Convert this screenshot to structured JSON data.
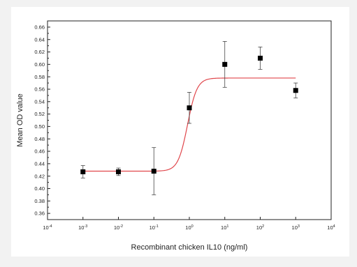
{
  "chart_data": {
    "type": "scatter",
    "title": "",
    "xlabel": "Recombinant chicken IL10 (ng/ml)",
    "ylabel": "Mean OD value",
    "x_scale": "log",
    "xlim": [
      0.0001,
      10000
    ],
    "ylim": [
      0.35,
      0.67
    ],
    "x_ticks": [
      {
        "value": 0.0001,
        "base": "10",
        "exp": "-4"
      },
      {
        "value": 0.001,
        "base": "10",
        "exp": "-3"
      },
      {
        "value": 0.01,
        "base": "10",
        "exp": "-2"
      },
      {
        "value": 0.1,
        "base": "10",
        "exp": "-1"
      },
      {
        "value": 1,
        "base": "10",
        "exp": "0"
      },
      {
        "value": 10,
        "base": "10",
        "exp": "1"
      },
      {
        "value": 100,
        "base": "10",
        "exp": "2"
      },
      {
        "value": 1000,
        "base": "10",
        "exp": "3"
      },
      {
        "value": 10000,
        "base": "10",
        "exp": "4"
      }
    ],
    "y_ticks": [
      "0.36",
      "0.38",
      "0.40",
      "0.42",
      "0.44",
      "0.46",
      "0.48",
      "0.50",
      "0.52",
      "0.54",
      "0.56",
      "0.58",
      "0.60",
      "0.62",
      "0.64",
      "0.66"
    ],
    "grid": false,
    "series": [
      {
        "marker": "square",
        "color": "#000000",
        "points": [
          {
            "x": 0.001,
            "y": 0.427,
            "err": 0.01
          },
          {
            "x": 0.01,
            "y": 0.427,
            "err": 0.006
          },
          {
            "x": 0.1,
            "y": 0.428,
            "err": 0.038
          },
          {
            "x": 1,
            "y": 0.53,
            "err": 0.025
          },
          {
            "x": 10,
            "y": 0.6,
            "err": 0.037
          },
          {
            "x": 100,
            "y": 0.61,
            "err": 0.018
          },
          {
            "x": 1000,
            "y": 0.558,
            "err": 0.012
          }
        ]
      }
    ],
    "fit_curve": {
      "type": "sigmoid",
      "color": "#e0464b",
      "bottom": 0.428,
      "top": 0.578,
      "x_range": [
        0.001,
        1000
      ]
    }
  }
}
